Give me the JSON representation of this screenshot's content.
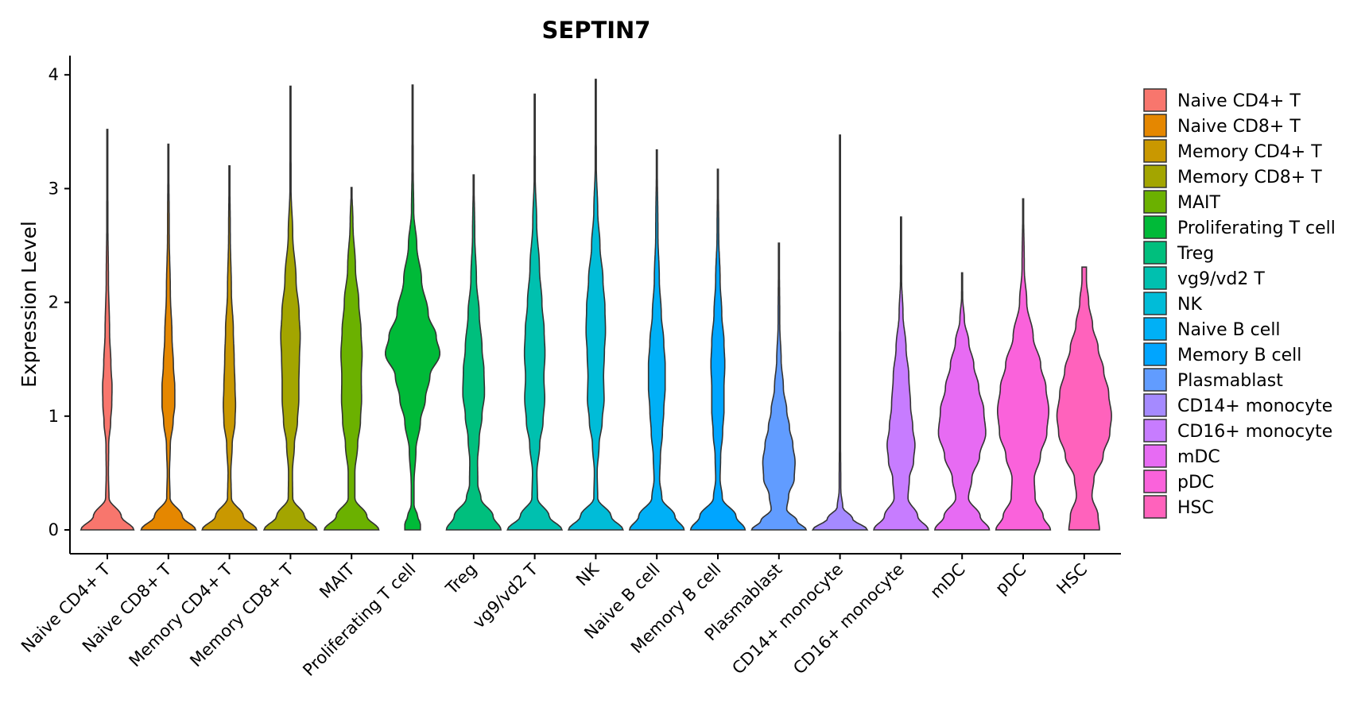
{
  "chart_data": {
    "type": "violin",
    "title": "SEPTIN7",
    "xlabel": "",
    "ylabel": "Expression Level",
    "ylim": [
      0,
      4.15
    ],
    "yticks": [
      0,
      1,
      2,
      3,
      4
    ],
    "legend_position": "right",
    "categories": [
      "Naive CD4+ T",
      "Naive CD8+ T",
      "Memory CD4+ T",
      "Memory CD8+ T",
      "MAIT",
      "Proliferating T cell",
      "Treg",
      "vg9/vd2 T",
      "NK",
      "Naive B cell",
      "Memory B cell",
      "Plasmablast",
      "CD14+ monocyte",
      "CD16+ monocyte",
      "mDC",
      "pDC",
      "HSC"
    ],
    "colors": [
      "#F8766D",
      "#E58700",
      "#C99800",
      "#A3A500",
      "#6BB100",
      "#00BA38",
      "#00BF7D",
      "#00C0AF",
      "#00BCD8",
      "#00B0F6",
      "#00A5FF",
      "#619CFF",
      "#A58AFF",
      "#C77CFF",
      "#E76BF3",
      "#FA62DB",
      "#FF62BC"
    ],
    "series": [
      {
        "name": "Naive CD4+ T",
        "max": 3.52,
        "profile": [
          [
            0,
            0.95
          ],
          [
            0.12,
            0.5
          ],
          [
            0.28,
            0.06
          ],
          [
            0.5,
            0.04
          ],
          [
            0.75,
            0.05
          ],
          [
            0.95,
            0.12
          ],
          [
            1.1,
            0.16
          ],
          [
            1.25,
            0.17
          ],
          [
            1.45,
            0.13
          ],
          [
            1.75,
            0.08
          ],
          [
            2.2,
            0.04
          ],
          [
            2.7,
            0.02
          ],
          [
            3.52,
            0.01
          ]
        ]
      },
      {
        "name": "Naive CD8+ T",
        "max": 3.39,
        "profile": [
          [
            0,
            0.98
          ],
          [
            0.12,
            0.5
          ],
          [
            0.28,
            0.06
          ],
          [
            0.5,
            0.04
          ],
          [
            0.75,
            0.07
          ],
          [
            0.95,
            0.17
          ],
          [
            1.1,
            0.23
          ],
          [
            1.25,
            0.23
          ],
          [
            1.45,
            0.18
          ],
          [
            1.7,
            0.13
          ],
          [
            2.1,
            0.07
          ],
          [
            2.6,
            0.03
          ],
          [
            3.39,
            0.01
          ]
        ]
      },
      {
        "name": "Memory CD4+ T",
        "max": 3.2,
        "profile": [
          [
            0,
            0.98
          ],
          [
            0.12,
            0.5
          ],
          [
            0.28,
            0.07
          ],
          [
            0.5,
            0.05
          ],
          [
            0.75,
            0.1
          ],
          [
            0.95,
            0.2
          ],
          [
            1.1,
            0.22
          ],
          [
            1.25,
            0.2
          ],
          [
            1.5,
            0.17
          ],
          [
            1.75,
            0.14
          ],
          [
            2.1,
            0.07
          ],
          [
            2.6,
            0.03
          ],
          [
            3.2,
            0.01
          ]
        ]
      },
      {
        "name": "Memory CD8+ T",
        "max": 3.9,
        "profile": [
          [
            0,
            0.95
          ],
          [
            0.12,
            0.5
          ],
          [
            0.28,
            0.08
          ],
          [
            0.5,
            0.07
          ],
          [
            0.75,
            0.14
          ],
          [
            0.95,
            0.25
          ],
          [
            1.15,
            0.3
          ],
          [
            1.3,
            0.3
          ],
          [
            1.5,
            0.32
          ],
          [
            1.7,
            0.35
          ],
          [
            1.9,
            0.31
          ],
          [
            2.2,
            0.2
          ],
          [
            2.6,
            0.08
          ],
          [
            3.0,
            0.02
          ],
          [
            3.9,
            0.01
          ]
        ]
      },
      {
        "name": "MAIT",
        "max": 3.01,
        "profile": [
          [
            0,
            0.98
          ],
          [
            0.12,
            0.55
          ],
          [
            0.28,
            0.12
          ],
          [
            0.5,
            0.12
          ],
          [
            0.75,
            0.22
          ],
          [
            0.95,
            0.32
          ],
          [
            1.15,
            0.36
          ],
          [
            1.35,
            0.35
          ],
          [
            1.55,
            0.38
          ],
          [
            1.75,
            0.34
          ],
          [
            2.0,
            0.26
          ],
          [
            2.3,
            0.14
          ],
          [
            2.7,
            0.05
          ],
          [
            3.01,
            0.01
          ]
        ]
      },
      {
        "name": "Proliferating T cell",
        "max": 3.91,
        "profile": [
          [
            0,
            0.28
          ],
          [
            0.05,
            0.28
          ],
          [
            0.12,
            0.18
          ],
          [
            0.22,
            0.05
          ],
          [
            0.4,
            0.05
          ],
          [
            0.7,
            0.12
          ],
          [
            0.95,
            0.28
          ],
          [
            1.15,
            0.46
          ],
          [
            1.35,
            0.62
          ],
          [
            1.55,
            0.98
          ],
          [
            1.7,
            0.85
          ],
          [
            1.9,
            0.56
          ],
          [
            2.2,
            0.32
          ],
          [
            2.5,
            0.15
          ],
          [
            2.8,
            0.04
          ],
          [
            3.2,
            0.02
          ],
          [
            3.91,
            0.01
          ]
        ]
      },
      {
        "name": "Treg",
        "max": 3.12,
        "profile": [
          [
            0,
            0.98
          ],
          [
            0.12,
            0.7
          ],
          [
            0.28,
            0.26
          ],
          [
            0.4,
            0.15
          ],
          [
            0.6,
            0.14
          ],
          [
            0.8,
            0.2
          ],
          [
            1.0,
            0.3
          ],
          [
            1.2,
            0.39
          ],
          [
            1.4,
            0.37
          ],
          [
            1.6,
            0.3
          ],
          [
            1.9,
            0.2
          ],
          [
            2.2,
            0.1
          ],
          [
            2.6,
            0.04
          ],
          [
            3.12,
            0.01
          ]
        ]
      },
      {
        "name": "vg9/vd2 T",
        "max": 3.83,
        "profile": [
          [
            0,
            0.98
          ],
          [
            0.12,
            0.52
          ],
          [
            0.28,
            0.1
          ],
          [
            0.5,
            0.08
          ],
          [
            0.75,
            0.18
          ],
          [
            0.95,
            0.3
          ],
          [
            1.15,
            0.36
          ],
          [
            1.35,
            0.33
          ],
          [
            1.55,
            0.37
          ],
          [
            1.75,
            0.34
          ],
          [
            2.0,
            0.26
          ],
          [
            2.3,
            0.17
          ],
          [
            2.7,
            0.07
          ],
          [
            3.1,
            0.02
          ],
          [
            3.83,
            0.01
          ]
        ]
      },
      {
        "name": "NK",
        "max": 3.96,
        "profile": [
          [
            0,
            0.98
          ],
          [
            0.12,
            0.55
          ],
          [
            0.28,
            0.07
          ],
          [
            0.5,
            0.05
          ],
          [
            0.75,
            0.12
          ],
          [
            0.95,
            0.23
          ],
          [
            1.15,
            0.3
          ],
          [
            1.35,
            0.28
          ],
          [
            1.55,
            0.31
          ],
          [
            1.75,
            0.35
          ],
          [
            1.95,
            0.33
          ],
          [
            2.2,
            0.26
          ],
          [
            2.5,
            0.15
          ],
          [
            2.8,
            0.07
          ],
          [
            3.2,
            0.02
          ],
          [
            3.96,
            0.01
          ]
        ]
      },
      {
        "name": "Naive B cell",
        "max": 3.34,
        "profile": [
          [
            0,
            0.98
          ],
          [
            0.12,
            0.65
          ],
          [
            0.28,
            0.18
          ],
          [
            0.45,
            0.1
          ],
          [
            0.65,
            0.13
          ],
          [
            0.85,
            0.2
          ],
          [
            1.05,
            0.25
          ],
          [
            1.25,
            0.3
          ],
          [
            1.45,
            0.3
          ],
          [
            1.65,
            0.25
          ],
          [
            1.9,
            0.16
          ],
          [
            2.2,
            0.09
          ],
          [
            2.6,
            0.04
          ],
          [
            3.34,
            0.01
          ]
        ]
      },
      {
        "name": "Memory B cell",
        "max": 3.17,
        "profile": [
          [
            0,
            0.98
          ],
          [
            0.12,
            0.65
          ],
          [
            0.28,
            0.16
          ],
          [
            0.45,
            0.08
          ],
          [
            0.65,
            0.1
          ],
          [
            0.85,
            0.17
          ],
          [
            1.05,
            0.22
          ],
          [
            1.25,
            0.22
          ],
          [
            1.45,
            0.25
          ],
          [
            1.65,
            0.22
          ],
          [
            1.9,
            0.14
          ],
          [
            2.2,
            0.08
          ],
          [
            2.6,
            0.03
          ],
          [
            3.17,
            0.01
          ]
        ]
      },
      {
        "name": "Plasmablast",
        "max": 2.52,
        "profile": [
          [
            0,
            0.98
          ],
          [
            0.08,
            0.65
          ],
          [
            0.18,
            0.28
          ],
          [
            0.3,
            0.35
          ],
          [
            0.45,
            0.55
          ],
          [
            0.6,
            0.58
          ],
          [
            0.75,
            0.5
          ],
          [
            0.9,
            0.38
          ],
          [
            1.05,
            0.28
          ],
          [
            1.25,
            0.16
          ],
          [
            1.5,
            0.08
          ],
          [
            1.8,
            0.03
          ],
          [
            2.52,
            0.01
          ]
        ]
      },
      {
        "name": "CD14+ monocyte",
        "max": 3.47,
        "profile": [
          [
            0,
            0.98
          ],
          [
            0.1,
            0.45
          ],
          [
            0.2,
            0.1
          ],
          [
            0.35,
            0.03
          ],
          [
            0.8,
            0.02
          ],
          [
            1.5,
            0.02
          ],
          [
            2.2,
            0.015
          ],
          [
            3.47,
            0.01
          ]
        ]
      },
      {
        "name": "CD16+ monocyte",
        "max": 2.75,
        "profile": [
          [
            0,
            0.98
          ],
          [
            0.12,
            0.6
          ],
          [
            0.28,
            0.25
          ],
          [
            0.45,
            0.3
          ],
          [
            0.6,
            0.45
          ],
          [
            0.75,
            0.5
          ],
          [
            0.9,
            0.42
          ],
          [
            1.1,
            0.34
          ],
          [
            1.35,
            0.28
          ],
          [
            1.6,
            0.18
          ],
          [
            1.9,
            0.07
          ],
          [
            2.2,
            0.02
          ],
          [
            2.75,
            0.01
          ]
        ]
      },
      {
        "name": "mDC",
        "max": 2.26,
        "profile": [
          [
            0,
            0.98
          ],
          [
            0.12,
            0.65
          ],
          [
            0.28,
            0.23
          ],
          [
            0.45,
            0.35
          ],
          [
            0.65,
            0.63
          ],
          [
            0.85,
            0.85
          ],
          [
            1.05,
            0.78
          ],
          [
            1.25,
            0.6
          ],
          [
            1.45,
            0.42
          ],
          [
            1.65,
            0.24
          ],
          [
            1.85,
            0.08
          ],
          [
            2.05,
            0.02
          ],
          [
            2.26,
            0.01
          ]
        ]
      },
      {
        "name": "pDC",
        "max": 2.91,
        "profile": [
          [
            0,
            0.98
          ],
          [
            0.12,
            0.72
          ],
          [
            0.28,
            0.43
          ],
          [
            0.45,
            0.4
          ],
          [
            0.65,
            0.62
          ],
          [
            0.85,
            0.85
          ],
          [
            1.05,
            0.92
          ],
          [
            1.25,
            0.82
          ],
          [
            1.45,
            0.63
          ],
          [
            1.7,
            0.36
          ],
          [
            2.0,
            0.13
          ],
          [
            2.3,
            0.04
          ],
          [
            2.91,
            0.01
          ]
        ]
      },
      {
        "name": "HSC",
        "max": 2.31,
        "profile": [
          [
            0,
            0.55
          ],
          [
            0.12,
            0.5
          ],
          [
            0.3,
            0.28
          ],
          [
            0.45,
            0.35
          ],
          [
            0.65,
            0.68
          ],
          [
            0.85,
            0.92
          ],
          [
            1.0,
            0.98
          ],
          [
            1.2,
            0.88
          ],
          [
            1.4,
            0.7
          ],
          [
            1.6,
            0.5
          ],
          [
            1.8,
            0.3
          ],
          [
            2.0,
            0.16
          ],
          [
            2.2,
            0.08
          ],
          [
            2.31,
            0.08
          ]
        ]
      }
    ]
  }
}
